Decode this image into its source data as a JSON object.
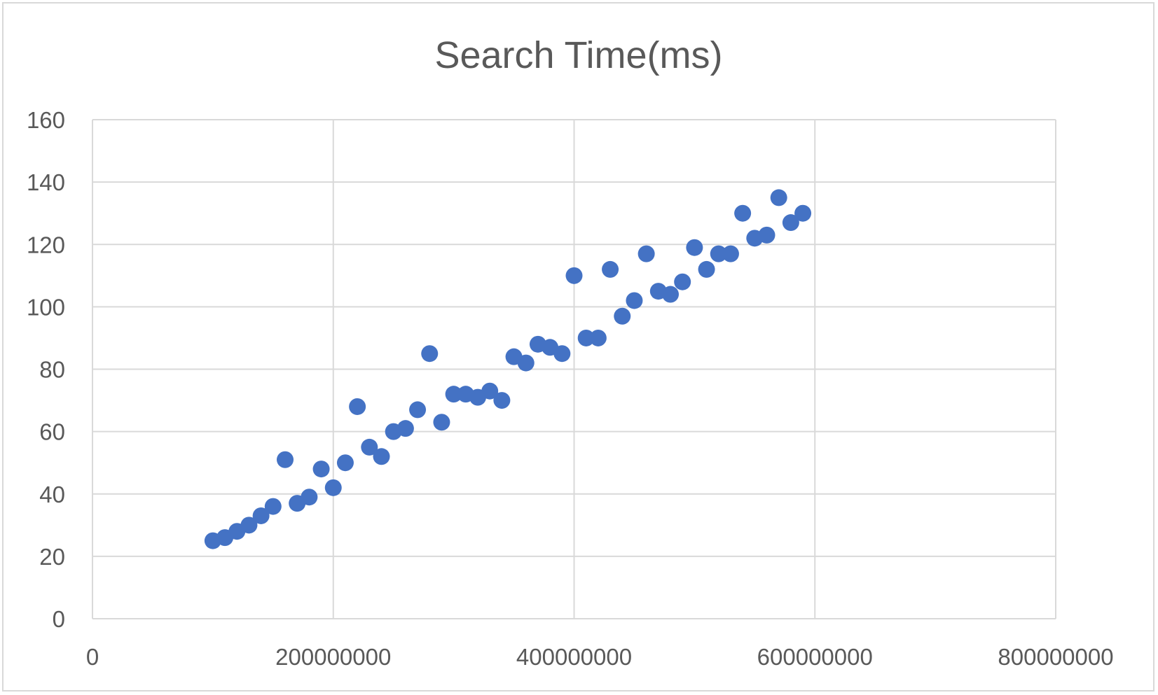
{
  "chart_data": {
    "type": "scatter",
    "title": "Search Time(ms)",
    "xlabel": "",
    "ylabel": "",
    "xlim": [
      0,
      800000000
    ],
    "ylim": [
      0,
      160
    ],
    "x_ticks": [
      0,
      200000000,
      400000000,
      600000000,
      800000000
    ],
    "x_tick_labels": [
      "0",
      "200000000",
      "400000000",
      "600000000",
      "800000000"
    ],
    "y_ticks": [
      0,
      20,
      40,
      60,
      80,
      100,
      120,
      140,
      160
    ],
    "y_tick_labels": [
      "0",
      "20",
      "40",
      "60",
      "80",
      "100",
      "120",
      "140",
      "160"
    ],
    "grid": true,
    "legend": "none",
    "marker_color": "#4472c4",
    "series": [
      {
        "points": [
          [
            100000000,
            25
          ],
          [
            110000000,
            26
          ],
          [
            120000000,
            28
          ],
          [
            130000000,
            30
          ],
          [
            140000000,
            33
          ],
          [
            150000000,
            36
          ],
          [
            160000000,
            51
          ],
          [
            170000000,
            37
          ],
          [
            180000000,
            39
          ],
          [
            190000000,
            48
          ],
          [
            200000000,
            42
          ],
          [
            210000000,
            50
          ],
          [
            220000000,
            68
          ],
          [
            230000000,
            55
          ],
          [
            240000000,
            52
          ],
          [
            250000000,
            60
          ],
          [
            260000000,
            61
          ],
          [
            270000000,
            67
          ],
          [
            280000000,
            85
          ],
          [
            290000000,
            63
          ],
          [
            300000000,
            72
          ],
          [
            310000000,
            72
          ],
          [
            320000000,
            71
          ],
          [
            330000000,
            73
          ],
          [
            340000000,
            70
          ],
          [
            350000000,
            84
          ],
          [
            360000000,
            82
          ],
          [
            370000000,
            88
          ],
          [
            380000000,
            87
          ],
          [
            390000000,
            85
          ],
          [
            400000000,
            110
          ],
          [
            410000000,
            90
          ],
          [
            420000000,
            90
          ],
          [
            430000000,
            112
          ],
          [
            440000000,
            97
          ],
          [
            450000000,
            102
          ],
          [
            460000000,
            117
          ],
          [
            470000000,
            105
          ],
          [
            480000000,
            104
          ],
          [
            490000000,
            108
          ],
          [
            500000000,
            119
          ],
          [
            510000000,
            112
          ],
          [
            520000000,
            117
          ],
          [
            530000000,
            117
          ],
          [
            540000000,
            130
          ],
          [
            550000000,
            122
          ],
          [
            560000000,
            123
          ],
          [
            570000000,
            135
          ],
          [
            580000000,
            127
          ],
          [
            590000000,
            130
          ]
        ]
      }
    ]
  }
}
